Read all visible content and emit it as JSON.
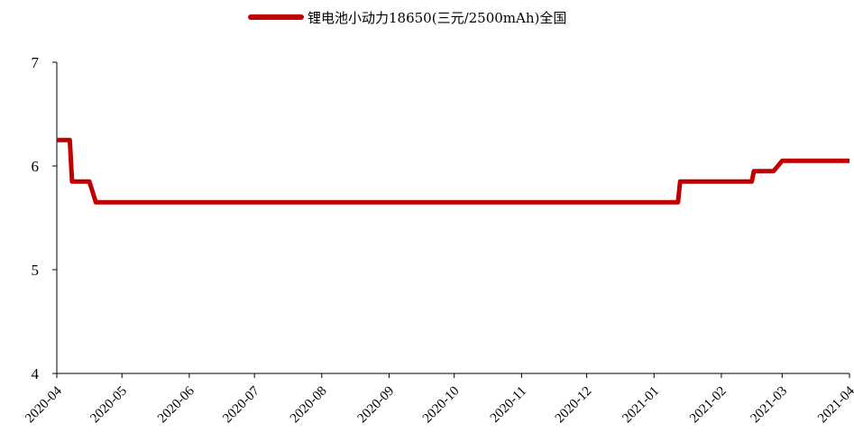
{
  "chart_data": {
    "type": "line",
    "legend_position": "top-center",
    "grid": false,
    "ylim": [
      4,
      7
    ],
    "yticks": [
      4,
      5,
      6,
      7
    ],
    "x_ticks": [
      "2020-04",
      "2020-05",
      "2020-06",
      "2020-07",
      "2020-08",
      "2020-09",
      "2020-10",
      "2020-11",
      "2020-12",
      "2021-01",
      "2021-02",
      "2021-03",
      "2021-04"
    ],
    "series": [
      {
        "name": "锂电池小动力18650(三元/2500mAh)全国",
        "color": "#c00000",
        "points": [
          {
            "x": "2020-04-01",
            "y": 6.25
          },
          {
            "x": "2020-04-07",
            "y": 6.25
          },
          {
            "x": "2020-04-08",
            "y": 5.85
          },
          {
            "x": "2020-04-16",
            "y": 5.85
          },
          {
            "x": "2020-04-19",
            "y": 5.65
          },
          {
            "x": "2021-01-12",
            "y": 5.65
          },
          {
            "x": "2021-01-13",
            "y": 5.85
          },
          {
            "x": "2021-02-15",
            "y": 5.85
          },
          {
            "x": "2021-02-16",
            "y": 5.95
          },
          {
            "x": "2021-02-25",
            "y": 5.95
          },
          {
            "x": "2021-03-01",
            "y": 6.05
          },
          {
            "x": "2021-04-01",
            "y": 6.05
          }
        ]
      }
    ]
  }
}
